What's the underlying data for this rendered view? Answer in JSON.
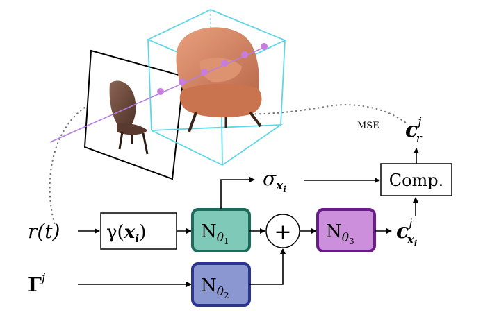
{
  "inputs": {
    "ray": {
      "base": "r(t)"
    },
    "latent": {
      "base": "Γ",
      "sup": "j"
    }
  },
  "encoding": {
    "prefix": "γ(",
    "arg": "x",
    "sub": "i",
    "suffix": ")"
  },
  "networks": {
    "n1": {
      "base": "N",
      "sub": "θ",
      "subsub": "1",
      "fill": "#7fc9b8",
      "stroke": "#1e6b5c"
    },
    "n2": {
      "base": "N",
      "sub": "θ",
      "subsub": "2",
      "fill": "#8a97d1",
      "stroke": "#2a3590"
    },
    "n3": {
      "base": "N",
      "sub": "θ",
      "subsub": "3",
      "fill": "#cc8fdb",
      "stroke": "#6a1b8a"
    }
  },
  "sum_symbol": "+",
  "sigma": {
    "base": "σ",
    "sub": "x",
    "subsub": "i"
  },
  "color_point": {
    "base": "c",
    "sup": "j",
    "sub": "x",
    "subsub": "i"
  },
  "composite": {
    "label": "Comp."
  },
  "ray_color": {
    "base": "c",
    "sup": "j",
    "sub": "r"
  },
  "loss": {
    "label": "MSE"
  },
  "scene": {
    "ray_line_color": "#b57fe0",
    "sample_point_color": "#c77de0",
    "bbox_color": "#5fd6e6",
    "chair_color": "#d98a6a",
    "image_chair_color": "#6b4a3e"
  }
}
